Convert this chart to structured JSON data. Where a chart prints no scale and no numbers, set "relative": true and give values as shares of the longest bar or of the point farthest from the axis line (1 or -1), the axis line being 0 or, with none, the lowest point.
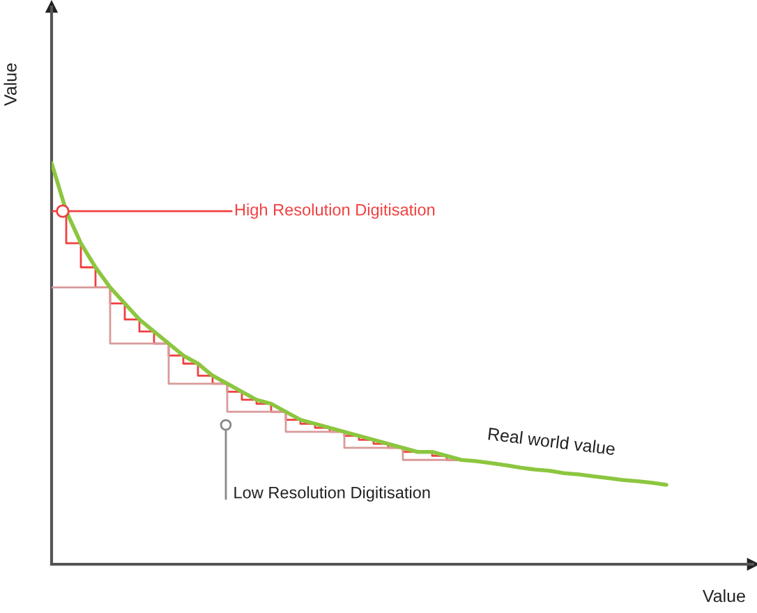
{
  "chart_data": {
    "type": "line",
    "relative": true,
    "xlabel": "Value",
    "ylabel": "Value",
    "categories": [
      null,
      null,
      null,
      null,
      null,
      null,
      null,
      null,
      null,
      null,
      null,
      null,
      null,
      null,
      null,
      null,
      null,
      null,
      null,
      null,
      null,
      null,
      null,
      null,
      null,
      null,
      null,
      null,
      null,
      null,
      null,
      null,
      null,
      null,
      null,
      null,
      null,
      null,
      null,
      null,
      null,
      null,
      null
    ],
    "series": [
      {
        "name": "Real world value",
        "type": "line",
        "color": "#8cc63f",
        "values": [
          1.0,
          0.88,
          0.8,
          0.74,
          0.69,
          0.65,
          0.61,
          0.58,
          0.55,
          0.52,
          0.5,
          0.47,
          0.45,
          0.43,
          0.41,
          0.4,
          0.38,
          0.36,
          0.35,
          0.34,
          0.33,
          0.32,
          0.31,
          0.3,
          0.29,
          0.28,
          0.28,
          0.27,
          0.26,
          0.257,
          0.252,
          0.247,
          0.241,
          0.236,
          0.233,
          0.227,
          0.224,
          0.219,
          0.215,
          0.21,
          0.207,
          0.203,
          0.198
        ]
      },
      {
        "name": "High Resolution Digitisation",
        "type": "step",
        "color": "#f04040",
        "values": [
          0.88,
          0.88,
          0.8,
          0.74,
          0.69,
          0.65,
          0.61,
          0.58,
          0.55,
          0.52,
          0.5,
          0.47,
          0.45,
          0.43,
          0.41,
          0.4,
          0.38,
          0.36,
          0.35,
          0.34,
          0.33,
          0.32,
          0.31,
          0.3,
          0.29,
          0.28,
          0.28,
          0.27,
          0.26,
          null,
          null,
          null,
          null,
          null,
          null,
          null,
          null,
          null,
          null,
          null,
          null,
          null,
          null
        ]
      },
      {
        "name": "Low Resolution Digitisation",
        "type": "step",
        "color": "#d99a9a",
        "values": [
          0.69,
          null,
          null,
          null,
          0.69,
          null,
          null,
          null,
          0.55,
          null,
          null,
          null,
          0.45,
          null,
          null,
          null,
          0.38,
          null,
          null,
          null,
          0.33,
          null,
          null,
          null,
          0.29,
          null,
          null,
          null,
          0.26,
          null,
          null,
          null,
          null,
          null,
          null,
          null,
          null,
          null,
          null,
          null,
          null,
          null,
          null
        ]
      }
    ]
  }
}
